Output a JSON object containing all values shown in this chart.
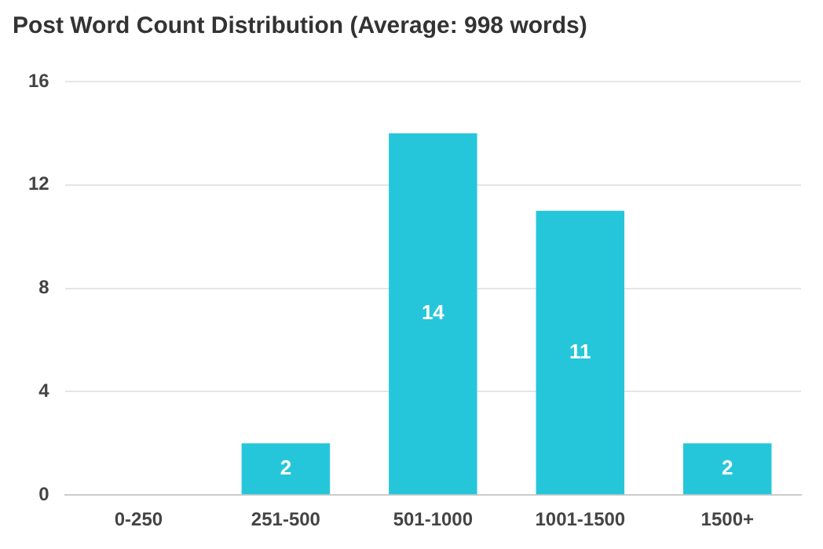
{
  "chart_data": {
    "type": "bar",
    "title": "Post Word Count Distribution (Average: 998 words)",
    "categories": [
      "0-250",
      "251-500",
      "501-1000",
      "1001-1500",
      "1500+"
    ],
    "values": [
      0,
      2,
      14,
      11,
      2
    ],
    "value_labels": [
      null,
      "2",
      "14",
      "11",
      "2"
    ],
    "color": "#26c6da",
    "ylim": [
      0,
      16
    ],
    "yticks": [
      0,
      4,
      8,
      12,
      16
    ],
    "grid": "y",
    "legend": false
  }
}
